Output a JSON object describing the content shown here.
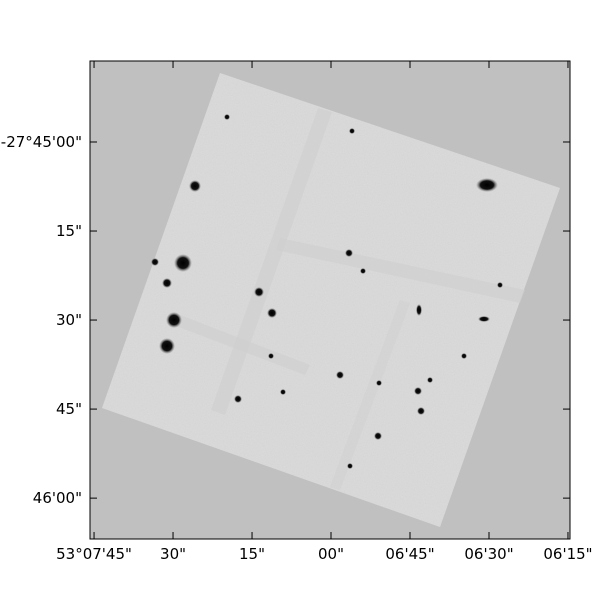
{
  "chart_data": {
    "type": "image",
    "xlim": [
      53.12938,
      53.10406
    ],
    "ylim": [
      -27.76858,
      -27.74621
    ],
    "xticks": [
      {
        "value": 53.129167,
        "label": "53°07'45\""
      },
      {
        "value": 53.125,
        "label": "30\""
      },
      {
        "value": 53.120833,
        "label": "15\""
      },
      {
        "value": 53.116667,
        "label": "00\""
      },
      {
        "value": 53.1125,
        "label": "06'45\""
      },
      {
        "value": 53.108333,
        "label": "06'30\""
      },
      {
        "value": 53.104167,
        "label": "06'15\""
      }
    ],
    "yticks": [
      {
        "value": -27.75,
        "label": "-27°45'00\""
      },
      {
        "value": -27.754167,
        "label": "15\""
      },
      {
        "value": -27.758333,
        "label": "30\""
      },
      {
        "value": -27.7625,
        "label": "45\""
      },
      {
        "value": -27.766667,
        "label": "46'00\""
      }
    ]
  }
}
